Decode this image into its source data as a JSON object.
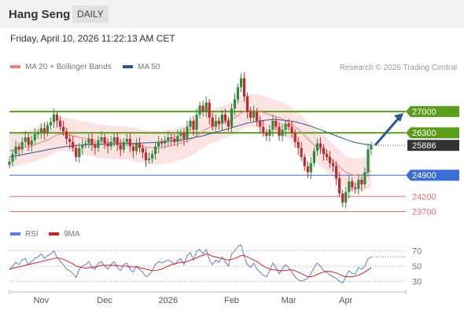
{
  "header": {
    "symbol": "Hang Seng",
    "interval": "DAILY"
  },
  "timestamp": "Friday, April 10, 2026 11:22:13 AM CET",
  "legend": {
    "ma20": {
      "label": "MA 20 + Bollinger Bands",
      "color": "#f08080"
    },
    "ma50": {
      "label": "MA 50",
      "color": "#2b5797"
    }
  },
  "credit": "Research © 2026 Trading Central",
  "rsi_legend": {
    "rsi": {
      "label": "RSI",
      "color": "#5b7fd6"
    },
    "ma": {
      "label": "9MA",
      "color": "#d42020"
    }
  },
  "colors": {
    "up": "#2e8b3e",
    "down": "#c62828",
    "resistance": "#5a9e1a",
    "support": "#3a6fd8",
    "stop": "#e07070",
    "last": "#333333"
  },
  "chart_data": [
    {
      "type": "candlestick",
      "title": "Hang Seng",
      "x_ticks": [
        "Nov",
        "Dec",
        "2026",
        "Feb",
        "Mar",
        "Apr"
      ],
      "ylim": [
        23300,
        28300
      ],
      "last_price": 25886,
      "levels": [
        {
          "label": "27000",
          "value": 27000,
          "kind": "resistance"
        },
        {
          "label": "26300",
          "value": 26300,
          "kind": "resistance"
        },
        {
          "label": "24900",
          "value": 24900,
          "kind": "support"
        },
        {
          "label": "24200",
          "value": 24200,
          "kind": "stop"
        },
        {
          "label": "23700",
          "value": 23700,
          "kind": "stop"
        }
      ],
      "last_label": "25886",
      "closes": [
        25350,
        25600,
        25850,
        25750,
        26000,
        26150,
        25900,
        26050,
        26250,
        26300,
        26450,
        26300,
        26550,
        26650,
        26900,
        26700,
        26500,
        26350,
        26100,
        26000,
        25800,
        25500,
        25800,
        25900,
        25950,
        26100,
        25900,
        25800,
        26050,
        26150,
        25950,
        25850,
        26000,
        26150,
        25900,
        25750,
        26000,
        26100,
        25850,
        25700,
        25950,
        25800,
        25650,
        25400,
        25450,
        25600,
        25850,
        26000,
        25950,
        26050,
        26150,
        26100,
        26000,
        26200,
        26300,
        26100,
        26500,
        26700,
        26400,
        26900,
        27200,
        27000,
        27300,
        26800,
        26500,
        26700,
        26600,
        26900,
        26700,
        26500,
        27100,
        27400,
        27800,
        28100,
        27500,
        27000,
        26800,
        27000,
        26700,
        26500,
        26300,
        26200,
        26400,
        26700,
        26500,
        26200,
        26400,
        26600,
        26500,
        26300,
        26000,
        25800,
        25500,
        25200,
        25000,
        25300,
        25700,
        25950,
        25800,
        25600,
        25500,
        25300,
        25200,
        24800,
        24300,
        24000,
        24350,
        24700,
        24500,
        24450,
        24750,
        24600,
        25000,
        25750,
        25886
      ],
      "ma20": [
        25700,
        25720,
        25750,
        25780,
        25800,
        25830,
        25850,
        25870,
        25900,
        25950,
        26000,
        26020,
        26060,
        26120,
        26180,
        26230,
        26250,
        26260,
        26250,
        26230,
        26200,
        26180,
        26150,
        26130,
        26120,
        26100,
        26080,
        26050,
        26030,
        26020,
        26000,
        25990,
        25980,
        25980,
        25980,
        25970,
        25960,
        25950,
        25940,
        25920,
        25900,
        25880,
        25860,
        25840,
        25820,
        25810,
        25800,
        25800,
        25810,
        25830,
        25850,
        25870,
        25900,
        25930,
        25960,
        25990,
        26030,
        26080,
        26140,
        26200,
        26270,
        26340,
        26420,
        26480,
        26520,
        26560,
        26600,
        26640,
        26680,
        26700,
        26750,
        26800,
        26880,
        26950,
        27000,
        27020,
        27030,
        27030,
        27020,
        27000,
        26970,
        26940,
        26900,
        26860,
        26830,
        26800,
        26760,
        26700,
        26640,
        26580,
        26500,
        26420,
        26320,
        26220,
        26100,
        26000,
        25900,
        25830,
        25750,
        25670,
        25580,
        25480,
        25380,
        25280,
        25180,
        25080,
        25000,
        24950,
        24920,
        24900,
        24900,
        24920,
        24950,
        25000,
        25050
      ],
      "ma50": [
        25500,
        25520,
        25540,
        25560,
        25580,
        25600,
        25620,
        25640,
        25660,
        25680,
        25700,
        25720,
        25740,
        25760,
        25780,
        25800,
        25820,
        25840,
        25850,
        25860,
        25870,
        25880,
        25890,
        25900,
        25900,
        25910,
        25910,
        25910,
        25920,
        25920,
        25920,
        25930,
        25930,
        25930,
        25940,
        25940,
        25940,
        25950,
        25950,
        25950,
        25960,
        25960,
        25960,
        25970,
        25970,
        25980,
        25980,
        25990,
        26000,
        26010,
        26020,
        26030,
        26040,
        26050,
        26060,
        26080,
        26100,
        26120,
        26140,
        26160,
        26180,
        26200,
        26230,
        26260,
        26290,
        26320,
        26350,
        26380,
        26410,
        26440,
        26470,
        26500,
        26530,
        26560,
        26590,
        26620,
        26640,
        26660,
        26680,
        26700,
        26710,
        26720,
        26730,
        26740,
        26740,
        26730,
        26720,
        26710,
        26700,
        26680,
        26660,
        26640,
        26610,
        26580,
        26550,
        26520,
        26480,
        26440,
        26400,
        26360,
        26320,
        26280,
        26240,
        26200,
        26160,
        26120,
        26080,
        26040,
        26010,
        25980,
        25960,
        25940,
        25920,
        25910,
        25900
      ]
    },
    {
      "type": "line",
      "title": "RSI",
      "ylim": [
        20,
        80
      ],
      "y_ticks": [
        "70",
        "50",
        "30"
      ],
      "rsi": [
        45,
        50,
        55,
        52,
        58,
        60,
        52,
        56,
        60,
        62,
        66,
        60,
        64,
        66,
        70,
        62,
        56,
        52,
        46,
        44,
        40,
        35,
        46,
        50,
        52,
        56,
        48,
        46,
        54,
        56,
        50,
        46,
        52,
        56,
        48,
        44,
        52,
        54,
        46,
        42,
        50,
        46,
        42,
        36,
        38,
        44,
        52,
        56,
        54,
        56,
        58,
        56,
        52,
        57,
        60,
        52,
        64,
        68,
        58,
        70,
        72,
        66,
        72,
        58,
        52,
        58,
        55,
        62,
        56,
        50,
        66,
        70,
        76,
        78,
        62,
        52,
        48,
        54,
        46,
        42,
        38,
        36,
        44,
        54,
        48,
        40,
        46,
        52,
        48,
        42,
        36,
        32,
        30,
        32,
        34,
        40,
        48,
        54,
        50,
        44,
        42,
        38,
        36,
        34,
        30,
        28,
        36,
        44,
        40,
        40,
        48,
        46,
        50,
        60,
        62
      ],
      "ma9": [
        46,
        47,
        48,
        49,
        50,
        51,
        52,
        53,
        54,
        55,
        56,
        57,
        58,
        59,
        60,
        61,
        60,
        59,
        57,
        55,
        53,
        50,
        49,
        48,
        47,
        48,
        48,
        49,
        50,
        51,
        51,
        51,
        51,
        51,
        51,
        50,
        50,
        50,
        49,
        49,
        49,
        48,
        47,
        46,
        45,
        44,
        44,
        45,
        46,
        48,
        50,
        52,
        53,
        54,
        55,
        55,
        56,
        58,
        59,
        61,
        63,
        64,
        66,
        65,
        63,
        62,
        61,
        60,
        59,
        58,
        59,
        60,
        62,
        64,
        64,
        62,
        60,
        58,
        56,
        53,
        50,
        48,
        46,
        45,
        45,
        44,
        44,
        44,
        45,
        45,
        44,
        42,
        40,
        38,
        36,
        36,
        37,
        39,
        41,
        42,
        43,
        43,
        42,
        41,
        39,
        37,
        36,
        36,
        36,
        37,
        38,
        40,
        42,
        45,
        48
      ]
    }
  ]
}
